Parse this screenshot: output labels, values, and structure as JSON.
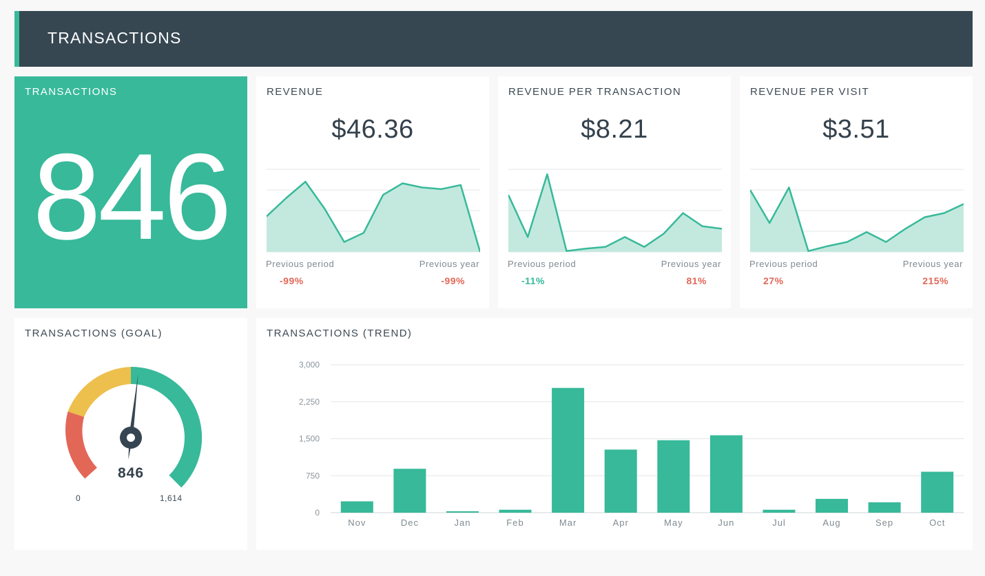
{
  "header": {
    "title": "TRANSACTIONS"
  },
  "colors": {
    "accent": "#37b99a",
    "header_bg": "#364752",
    "negative": "#e26757",
    "gauge_red": "#e26757",
    "gauge_yellow": "#edbf4c"
  },
  "transactions_card": {
    "title": "TRANSACTIONS",
    "value": "846"
  },
  "kpis": [
    {
      "title": "REVENUE",
      "value": "$46.36",
      "prev_period_label": "Previous period",
      "prev_period_value": "-99%",
      "prev_period_trend": "neg",
      "prev_year_label": "Previous year",
      "prev_year_value": "-99%",
      "prev_year_trend": "neg",
      "spark": [
        0.43,
        0.65,
        0.85,
        0.52,
        0.12,
        0.23,
        0.69,
        0.83,
        0.78,
        0.76,
        0.81,
        0.0
      ]
    },
    {
      "title": "REVENUE PER TRANSACTION",
      "value": "$8.21",
      "prev_period_label": "Previous period",
      "prev_period_value": "-11%",
      "prev_period_trend": "pos",
      "prev_year_label": "Previous year",
      "prev_year_value": "81%",
      "prev_year_trend": "neg",
      "spark": [
        0.69,
        0.18,
        0.94,
        0.01,
        0.04,
        0.06,
        0.18,
        0.06,
        0.22,
        0.47,
        0.31,
        0.28
      ]
    },
    {
      "title": "REVENUE PER VISIT",
      "value": "$3.51",
      "prev_period_label": "Previous period",
      "prev_period_value": "27%",
      "prev_period_trend": "neg",
      "prev_year_label": "Previous year",
      "prev_year_value": "215%",
      "prev_year_trend": "neg",
      "spark": [
        0.75,
        0.35,
        0.78,
        0.01,
        0.07,
        0.12,
        0.24,
        0.12,
        0.28,
        0.42,
        0.47,
        0.58
      ]
    }
  ],
  "gauge": {
    "title": "TRANSACTIONS (GOAL)",
    "value": 846,
    "value_label": "846",
    "min": 0,
    "min_label": "0",
    "max": 1614,
    "max_label": "1,614"
  },
  "chart_data": {
    "type": "bar",
    "title": "TRANSACTIONS (TREND)",
    "categories": [
      "Nov",
      "Dec",
      "Jan",
      "Feb",
      "Mar",
      "Apr",
      "May",
      "Jun",
      "Jul",
      "Aug",
      "Sep",
      "Oct"
    ],
    "values": [
      230,
      890,
      30,
      60,
      2530,
      1280,
      1470,
      1570,
      60,
      280,
      210,
      830
    ],
    "ylim": [
      0,
      3000
    ],
    "yticks": [
      0,
      750,
      1500,
      2250,
      3000
    ],
    "ytick_labels": [
      "0",
      "750",
      "1,500",
      "2,250",
      "3,000"
    ],
    "grid": true,
    "legend": "none",
    "color": "#37b99a"
  }
}
